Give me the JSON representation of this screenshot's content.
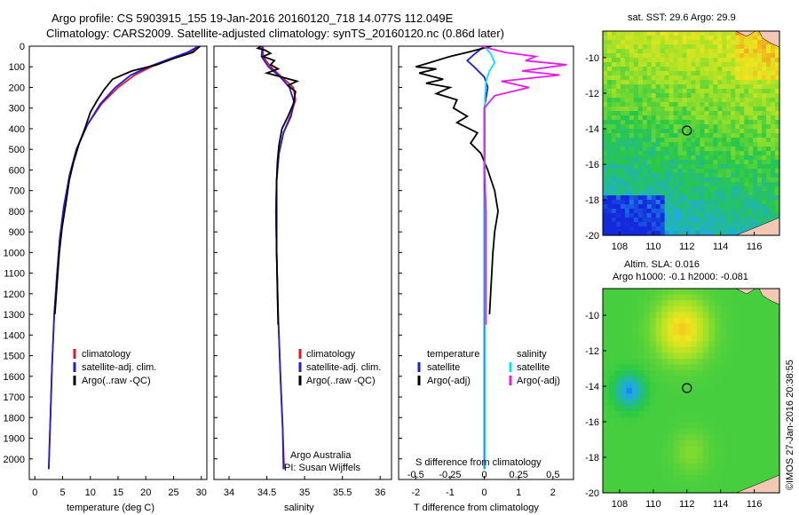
{
  "header": {
    "line1": "Argo profile: CS 5903915_155 19-Jan-2016 20160120_718 14.077S 112.049E",
    "line2": "Climatology: CARS2009. Satellite-adjusted climatology: synTS_20160120.nc (0.86d later)"
  },
  "colors": {
    "clim": "#e8141c",
    "sat": "#1c1ce6",
    "argo": "#000000",
    "sat_s": "#00e5f0",
    "argo_s": "#e81ce8"
  },
  "chart_data": [
    {
      "type": "line",
      "id": "temperature",
      "xlabel": "temperature (deg C)",
      "xlim": [
        -1,
        31
      ],
      "ylim": [
        2100,
        0
      ],
      "xticks": [
        "0",
        "5",
        "10",
        "15",
        "20",
        "25",
        "30"
      ],
      "yticks": [
        "0",
        "100",
        "200",
        "300",
        "400",
        "500",
        "600",
        "700",
        "800",
        "900",
        "1000",
        "1100",
        "1200",
        "1300",
        "1400",
        "1500",
        "1600",
        "1700",
        "1800",
        "1900",
        "2000"
      ],
      "legend": [
        "climatology",
        "satellite-adj. clim.",
        "Argo(..raw -QC)"
      ],
      "series": [
        {
          "name": "climatology",
          "color": "clim",
          "points": [
            [
              29.5,
              0
            ],
            [
              28,
              30
            ],
            [
              25,
              60
            ],
            [
              21,
              100
            ],
            [
              18,
              140
            ],
            [
              15,
              200
            ],
            [
              12,
              280
            ],
            [
              9.5,
              380
            ],
            [
              7.5,
              500
            ],
            [
              6.3,
              620
            ],
            [
              5.2,
              780
            ],
            [
              4.5,
              930
            ],
            [
              4,
              1100
            ],
            [
              3.5,
              1300
            ],
            [
              3.1,
              1550
            ],
            [
              2.8,
              1800
            ],
            [
              2.5,
              2050
            ]
          ]
        },
        {
          "name": "satellite-adj. clim.",
          "color": "sat",
          "points": [
            [
              29.5,
              0
            ],
            [
              27.5,
              30
            ],
            [
              24.5,
              60
            ],
            [
              20.5,
              100
            ],
            [
              17.3,
              140
            ],
            [
              14.5,
              200
            ],
            [
              11.8,
              280
            ],
            [
              9.5,
              380
            ],
            [
              7.5,
              500
            ],
            [
              6.3,
              620
            ],
            [
              5.2,
              780
            ],
            [
              4.5,
              930
            ],
            [
              4,
              1100
            ],
            [
              3.5,
              1300
            ],
            [
              3.1,
              1550
            ],
            [
              2.8,
              1800
            ],
            [
              2.5,
              2050
            ]
          ]
        },
        {
          "name": "Argo(..raw -QC)",
          "color": "argo",
          "points": [
            [
              29.8,
              0
            ],
            [
              28.5,
              30
            ],
            [
              25,
              60
            ],
            [
              22,
              90
            ],
            [
              17.5,
              120
            ],
            [
              14,
              160
            ],
            [
              12.5,
              210
            ],
            [
              11.3,
              260
            ],
            [
              10,
              320
            ],
            [
              9,
              400
            ],
            [
              8,
              470
            ],
            [
              7,
              560
            ],
            [
              6.2,
              650
            ],
            [
              5.6,
              760
            ],
            [
              4.9,
              880
            ],
            [
              4.4,
              1000
            ],
            [
              4,
              1150
            ],
            [
              3.6,
              1300
            ]
          ]
        }
      ]
    },
    {
      "type": "line",
      "id": "salinity",
      "xlabel": "salinity",
      "xlim": [
        33.8,
        36.15
      ],
      "ylim": [
        2100,
        0
      ],
      "xticks": [
        "34",
        "34.5",
        "35",
        "35.5",
        "36"
      ],
      "legend": [
        "climatology",
        "satellite-adj. clim.",
        "Argo(..raw -QC)"
      ],
      "annotation": [
        "Argo Australia",
        "PI: Susan Wijffels"
      ],
      "series": [
        {
          "name": "climatology",
          "color": "clim",
          "points": [
            [
              34.45,
              0
            ],
            [
              34.45,
              50
            ],
            [
              34.55,
              100
            ],
            [
              34.7,
              150
            ],
            [
              34.85,
              200
            ],
            [
              34.88,
              260
            ],
            [
              34.82,
              330
            ],
            [
              34.72,
              420
            ],
            [
              34.66,
              520
            ],
            [
              34.63,
              650
            ],
            [
              34.62,
              800
            ],
            [
              34.63,
              1000
            ],
            [
              34.65,
              1300
            ],
            [
              34.68,
              1600
            ],
            [
              34.71,
              1850
            ],
            [
              34.73,
              2050
            ]
          ]
        },
        {
          "name": "satellite-adj. clim.",
          "color": "sat",
          "points": [
            [
              34.44,
              0
            ],
            [
              34.43,
              50
            ],
            [
              34.52,
              100
            ],
            [
              34.68,
              150
            ],
            [
              34.8,
              200
            ],
            [
              34.86,
              270
            ],
            [
              34.82,
              340
            ],
            [
              34.72,
              420
            ],
            [
              34.66,
              520
            ],
            [
              34.63,
              650
            ],
            [
              34.62,
              800
            ],
            [
              34.63,
              1000
            ],
            [
              34.65,
              1300
            ],
            [
              34.68,
              1600
            ],
            [
              34.71,
              1850
            ],
            [
              34.72,
              2050
            ]
          ]
        },
        {
          "name": "Argo(..raw -QC)",
          "color": "argo",
          "points": [
            [
              34.43,
              0
            ],
            [
              34.38,
              10
            ],
            [
              34.48,
              20
            ],
            [
              34.55,
              35
            ],
            [
              34.45,
              50
            ],
            [
              34.6,
              70
            ],
            [
              34.55,
              90
            ],
            [
              34.65,
              110
            ],
            [
              34.5,
              130
            ],
            [
              34.7,
              150
            ],
            [
              34.9,
              170
            ],
            [
              34.78,
              190
            ],
            [
              34.88,
              220
            ],
            [
              34.85,
              280
            ],
            [
              34.78,
              340
            ],
            [
              34.7,
              400
            ],
            [
              34.66,
              480
            ],
            [
              34.64,
              560
            ],
            [
              34.63,
              650
            ],
            [
              34.63,
              800
            ],
            [
              34.63,
              1000
            ],
            [
              34.64,
              1200
            ],
            [
              34.65,
              1350
            ]
          ]
        }
      ]
    },
    {
      "type": "line",
      "id": "difference",
      "xlabel": "T difference from climatology",
      "xlabel2": "S difference from climatology",
      "xlim": [
        -2.5,
        2.6
      ],
      "ylim": [
        2100,
        0
      ],
      "xticks": [
        "-2",
        "-1",
        "0",
        "1",
        "2"
      ],
      "xticks2": [
        "-0.5",
        "-0.25",
        "0",
        "0.25",
        "0.5"
      ],
      "legend_t": {
        "title": "temperature",
        "items": [
          "satellite",
          "Argo(-adj)"
        ]
      },
      "legend_s": {
        "title": "salinity",
        "items": [
          "satellite",
          "Argo(-adj)"
        ]
      },
      "series": [
        {
          "name": "temperature satellite",
          "color": "sat",
          "points": [
            [
              0,
              0
            ],
            [
              -0.3,
              40
            ],
            [
              -0.5,
              70
            ],
            [
              -0.3,
              100
            ],
            [
              0,
              150
            ],
            [
              0.1,
              200
            ],
            [
              0,
              300
            ],
            [
              0,
              400
            ],
            [
              0,
              500
            ],
            [
              0,
              700
            ],
            [
              0,
              1000
            ],
            [
              0,
              1500
            ],
            [
              0,
              2050
            ]
          ]
        },
        {
          "name": "temperature Argo(-adj)",
          "color": "argo",
          "points": [
            [
              0.2,
              0
            ],
            [
              -0.5,
              30
            ],
            [
              -1,
              50
            ],
            [
              -1.6,
              80
            ],
            [
              -2,
              100
            ],
            [
              -1.4,
              110
            ],
            [
              -1.9,
              130
            ],
            [
              -1.2,
              160
            ],
            [
              -1.7,
              180
            ],
            [
              -1,
              200
            ],
            [
              -1.4,
              230
            ],
            [
              -0.8,
              260
            ],
            [
              -0.9,
              300
            ],
            [
              -0.5,
              340
            ],
            [
              -0.8,
              370
            ],
            [
              -0.2,
              420
            ],
            [
              -0.4,
              470
            ],
            [
              -0.1,
              520
            ],
            [
              0.1,
              600
            ],
            [
              0.3,
              700
            ],
            [
              0.4,
              800
            ],
            [
              0.3,
              900
            ],
            [
              0.25,
              1000
            ],
            [
              0.2,
              1150
            ],
            [
              0.15,
              1300
            ]
          ]
        },
        {
          "name": "salinity satellite",
          "color": "sat_s",
          "points": [
            [
              0,
              0
            ],
            [
              0.2,
              40
            ],
            [
              0.3,
              80
            ],
            [
              0.15,
              120
            ],
            [
              0.05,
              170
            ],
            [
              0.02,
              250
            ],
            [
              0.02,
              400
            ],
            [
              0.02,
              600
            ],
            [
              0.02,
              900
            ],
            [
              0.02,
              1200
            ],
            [
              0.02,
              1600
            ],
            [
              0.02,
              2050
            ]
          ]
        },
        {
          "name": "salinity Argo(-adj)",
          "color": "argo_s",
          "points": [
            [
              -0.1,
              0
            ],
            [
              0.6,
              30
            ],
            [
              1.5,
              50
            ],
            [
              1.2,
              70
            ],
            [
              2.4,
              90
            ],
            [
              1.1,
              120
            ],
            [
              2.2,
              140
            ],
            [
              0.5,
              170
            ],
            [
              1.3,
              200
            ],
            [
              0.3,
              240
            ],
            [
              0,
              300
            ],
            [
              0,
              400
            ],
            [
              0,
              600
            ],
            [
              0.05,
              800
            ],
            [
              0.05,
              1000
            ],
            [
              0.05,
              1200
            ],
            [
              0.05,
              1350
            ]
          ]
        }
      ]
    },
    {
      "type": "heatmap",
      "id": "sst_map",
      "title": "sat. SST: 29.6 Argo: 29.9",
      "xlim": [
        107,
        117.5
      ],
      "ylim": [
        -20,
        -8.5
      ],
      "xticks": [
        "108",
        "110",
        "112",
        "114",
        "116"
      ],
      "yticks": [
        "-10",
        "-12",
        "-14",
        "-16",
        "-18",
        "-20"
      ],
      "marker": [
        112,
        -14.1
      ]
    },
    {
      "type": "heatmap",
      "id": "sla_map",
      "title": "Altim. SLA: 0.016",
      "subtitle": "Argo h1000: -0.1 h2000: -0.081",
      "xlim": [
        107,
        117.5
      ],
      "ylim": [
        -20,
        -8.5
      ],
      "xticks": [
        "108",
        "110",
        "112",
        "114",
        "116"
      ],
      "yticks": [
        "-10",
        "-12",
        "-14",
        "-16",
        "-18",
        "-20"
      ],
      "marker": [
        112,
        -14.1
      ]
    }
  ],
  "footer": {
    "stamp": "©IMOS 27-Jan-2016 20:38:55"
  }
}
